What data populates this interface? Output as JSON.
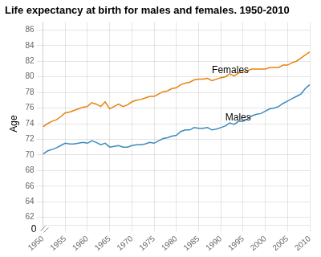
{
  "chart_data": {
    "type": "line",
    "title": "Life expectancy at birth for males and females. 1950-2010",
    "y_label": "Age",
    "x": [
      1950,
      1951,
      1952,
      1953,
      1954,
      1955,
      1956,
      1957,
      1958,
      1959,
      1960,
      1961,
      1962,
      1963,
      1964,
      1965,
      1966,
      1967,
      1968,
      1969,
      1970,
      1971,
      1972,
      1973,
      1974,
      1975,
      1976,
      1977,
      1978,
      1979,
      1980,
      1981,
      1982,
      1983,
      1984,
      1985,
      1986,
      1987,
      1988,
      1989,
      1990,
      1991,
      1992,
      1993,
      1994,
      1995,
      1996,
      1997,
      1998,
      1999,
      2000,
      2001,
      2002,
      2003,
      2004,
      2005,
      2006,
      2007,
      2008,
      2009,
      2010
    ],
    "series": [
      {
        "name": "Females",
        "color": "#E8820C",
        "values": [
          73.6,
          74.0,
          74.3,
          74.5,
          74.9,
          75.4,
          75.5,
          75.7,
          75.9,
          76.1,
          76.2,
          76.7,
          76.5,
          76.2,
          76.8,
          75.9,
          76.2,
          76.5,
          76.2,
          76.4,
          76.8,
          77.0,
          77.1,
          77.3,
          77.5,
          77.5,
          77.8,
          78.1,
          78.2,
          78.5,
          78.6,
          79.0,
          79.2,
          79.3,
          79.6,
          79.7,
          79.7,
          79.8,
          79.5,
          79.7,
          79.9,
          80.0,
          80.4,
          80.1,
          80.5,
          80.6,
          80.8,
          81.0,
          81.0,
          81.0,
          81.0,
          81.2,
          81.2,
          81.2,
          81.5,
          81.5,
          81.8,
          82.0,
          82.4,
          82.8,
          83.2
        ]
      },
      {
        "name": "Males",
        "color": "#3A8BBE",
        "values": [
          70.1,
          70.5,
          70.7,
          70.9,
          71.2,
          71.5,
          71.4,
          71.4,
          71.5,
          71.6,
          71.5,
          71.8,
          71.6,
          71.3,
          71.5,
          71.0,
          71.1,
          71.2,
          71.0,
          71.0,
          71.2,
          71.3,
          71.3,
          71.4,
          71.6,
          71.5,
          71.8,
          72.1,
          72.2,
          72.4,
          72.5,
          73.0,
          73.2,
          73.2,
          73.5,
          73.4,
          73.4,
          73.5,
          73.2,
          73.3,
          73.5,
          73.7,
          74.1,
          73.9,
          74.3,
          74.3,
          74.6,
          75.0,
          75.2,
          75.3,
          75.6,
          75.9,
          76.0,
          76.2,
          76.6,
          76.9,
          77.2,
          77.5,
          77.8,
          78.5,
          79.0
        ]
      }
    ],
    "xlim": [
      1950,
      2010
    ],
    "ylim": [
      61.0,
      87.0
    ],
    "xticks": [
      1950,
      1955,
      1960,
      1965,
      1970,
      1975,
      1980,
      1985,
      1990,
      1995,
      2000,
      2005,
      2010
    ],
    "yticks": [
      62,
      64,
      66,
      68,
      70,
      72,
      74,
      76,
      78,
      80,
      82,
      84,
      86
    ],
    "grid": true,
    "annotations": [
      {
        "text": "Females",
        "x": 1988,
        "y": 80.2
      },
      {
        "text": "Males",
        "x": 1991,
        "y": 74.1
      },
      {
        "text": "0"
      }
    ]
  }
}
